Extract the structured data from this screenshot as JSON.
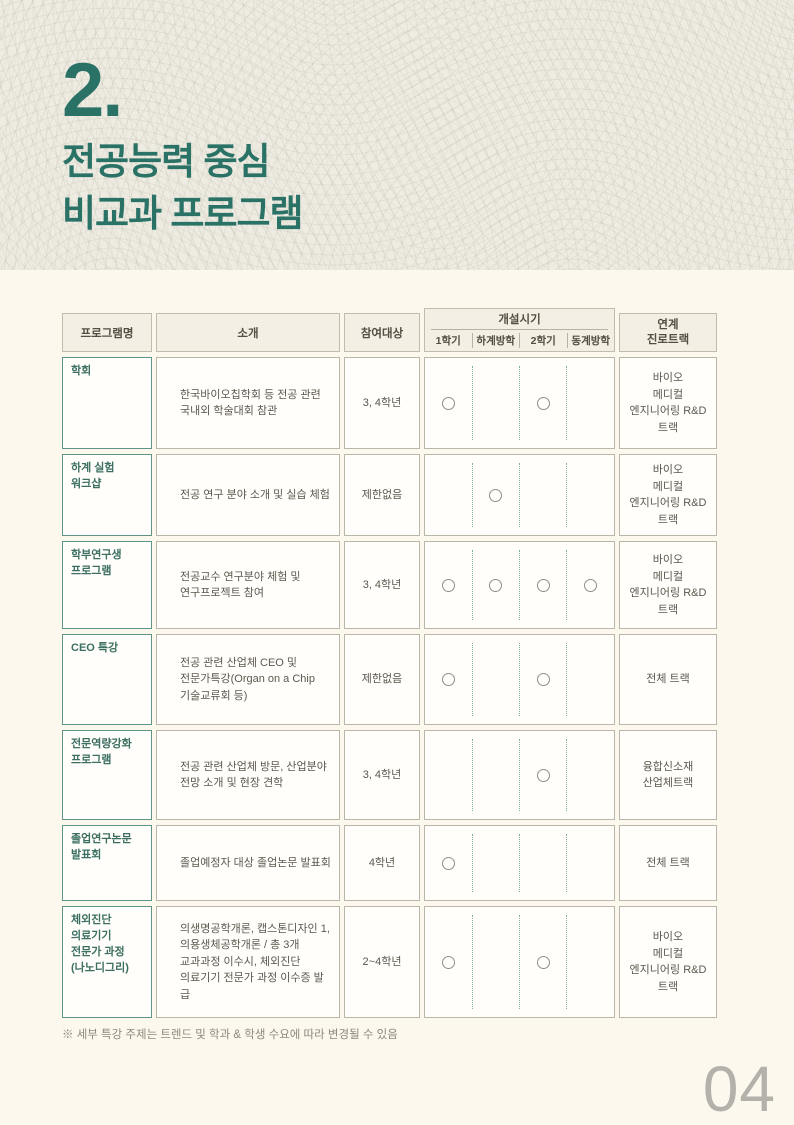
{
  "page": {
    "section_number": "2.",
    "title_line1": "전공능력 중심",
    "title_line2": "비교과 프로그램",
    "note": "※ 세부 특강 주제는 트렌드 및 학과 & 학생 수요에 따라 변경될 수 있음",
    "page_number": "04"
  },
  "colors": {
    "accent_teal": "#2b7266",
    "program_cell_border": "#5f9487",
    "cell_border": "#bab6aa",
    "header_cell_bg": "#f3efe4",
    "page_bg": "#fdf8ee",
    "band_bg": "#edebe2",
    "circle_outline": "#8e8e8e",
    "dotted_separator": "#7dada2",
    "page_number_gray": "#b4b1ab"
  },
  "table": {
    "headers": {
      "program": "프로그램명",
      "intro": "소개",
      "audience": "참여대상",
      "schedule": "개설시기",
      "schedule_sub": [
        "1학기",
        "하계방학",
        "2학기",
        "동계방학"
      ],
      "track": "연계\n진로트랙"
    },
    "rows": [
      {
        "program": "학회",
        "intro": "한국바이오칩학회 등 전공 관련\n국내외 학술대회 참관",
        "audience": "3, 4학년",
        "schedule": [
          1,
          0,
          1,
          0
        ],
        "track": "바이오\n메디컬\n엔지니어링 R&D\n트랙"
      },
      {
        "program": "하계 실험\n워크샵",
        "intro": "전공 연구 분야 소개 및 실습 체험",
        "audience": "제한없음",
        "schedule": [
          0,
          1,
          0,
          0
        ],
        "track": "바이오\n메디컬\n엔지니어링 R&D\n트랙"
      },
      {
        "program": "학부연구생\n프로그램",
        "intro": "전공교수 연구분야 체험 및\n연구프로젝트 참여",
        "audience": "3, 4학년",
        "schedule": [
          1,
          1,
          1,
          1
        ],
        "track": "바이오\n메디컬\n엔지니어링 R&D\n트랙"
      },
      {
        "program": "CEO 특강",
        "intro": "전공 관련 산업체 CEO 및\n전문가특강(Organ on a Chip\n기술교류회 등)",
        "audience": "제한없음",
        "schedule": [
          1,
          0,
          1,
          0
        ],
        "track": "전체 트랙"
      },
      {
        "program": "전문역량강화\n프로그램",
        "intro": "전공 관련 산업체 방문, 산업분야\n전망 소개 및 현장 견학",
        "audience": "3, 4학년",
        "schedule": [
          0,
          0,
          1,
          0
        ],
        "track": "융합신소재\n산업체트랙"
      },
      {
        "program": "졸업연구논문\n발표회",
        "intro": "졸업예정자 대상 졸업논문 발표회",
        "audience": "4학년",
        "schedule": [
          1,
          0,
          0,
          0
        ],
        "track": "전체 트랙"
      },
      {
        "program": "체외진단\n의료기기\n전문가 과정\n(나노디그리)",
        "intro": "의생명공학개론, 캡스톤디자인 1,\n의용생체공학개론 / 총 3개\n교과과정 이수시, 체외진단\n의료기기 전문가 과정 이수증 발급",
        "audience": "2~4학년",
        "schedule": [
          1,
          0,
          1,
          0
        ],
        "track": "바이오\n메디컬\n엔지니어링 R&D\n트랙"
      }
    ]
  }
}
